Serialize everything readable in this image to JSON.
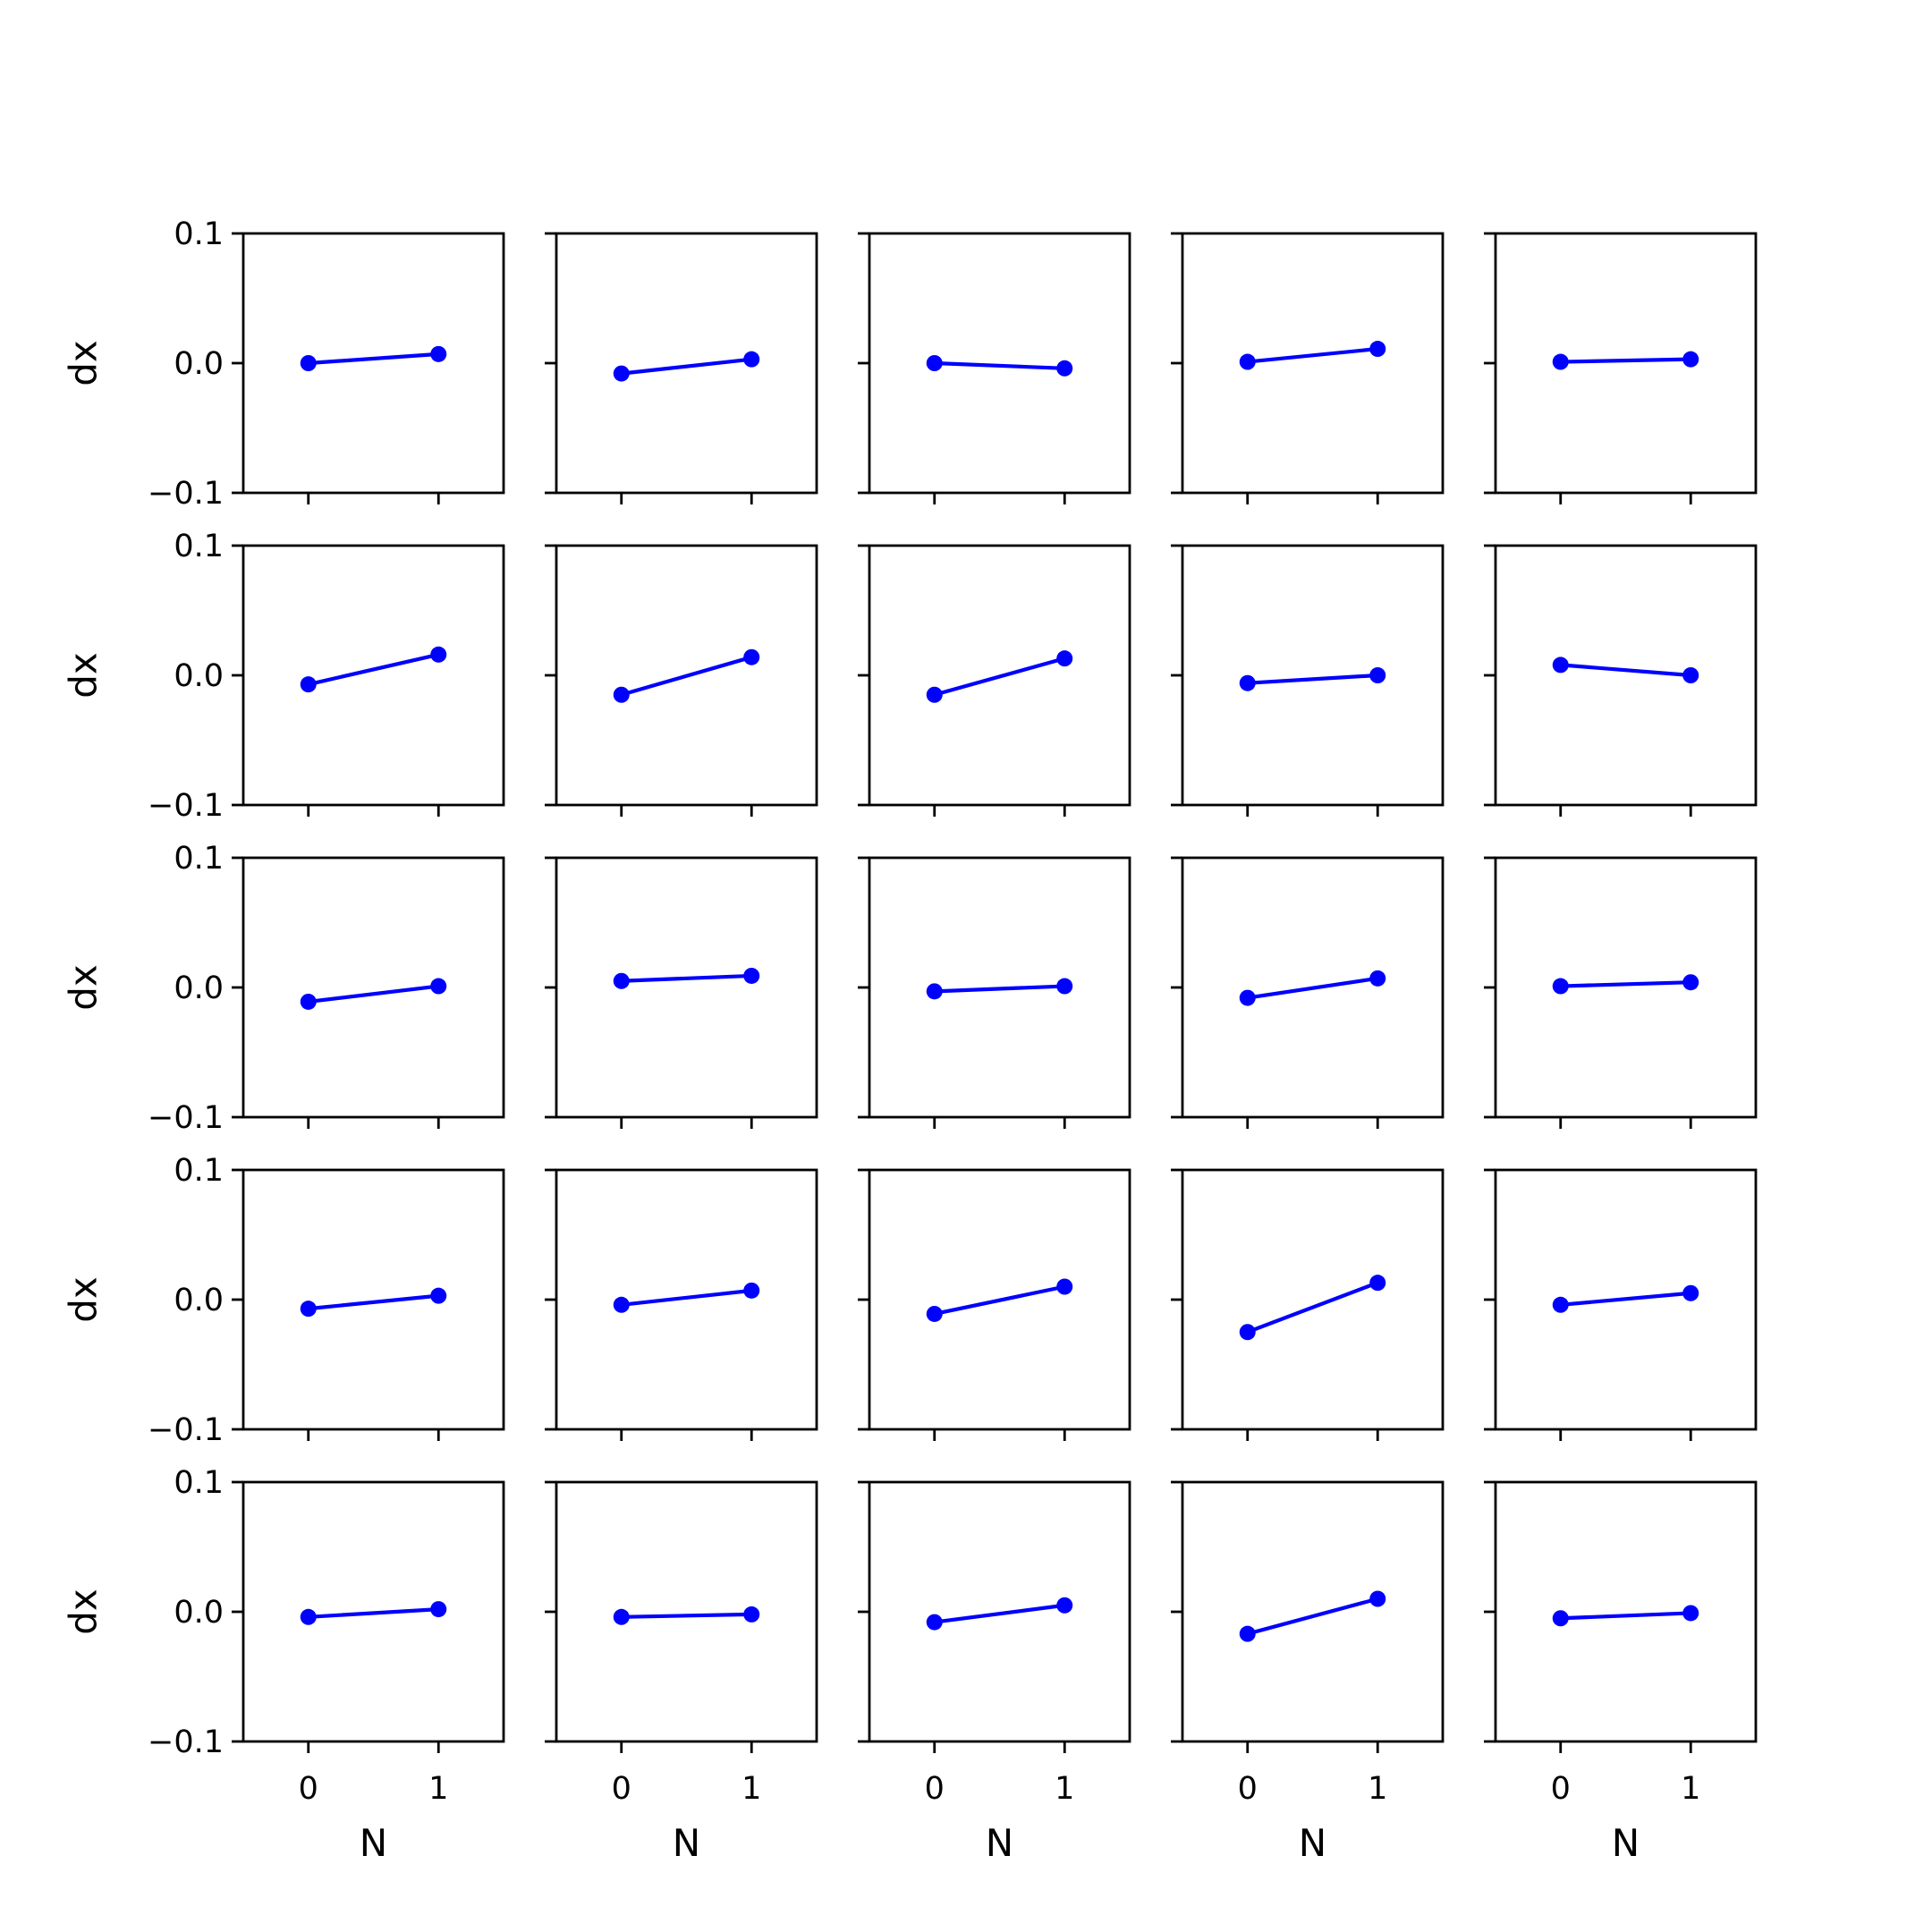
{
  "chart_data": {
    "type": "line",
    "layout": "5x5 grid of small multiples",
    "grid": false,
    "line_color": "#0000ff",
    "xlabel": "N",
    "ylabel": "dx",
    "x": [
      0,
      1
    ],
    "xlim": [
      -0.5,
      1.5
    ],
    "ylim": [
      -0.1,
      0.1
    ],
    "xticks": [
      "0",
      "1"
    ],
    "yticks": [
      "0.1",
      "0.0",
      "−0.1"
    ],
    "panels": [
      {
        "row": 0,
        "col": 0,
        "y": [
          0.0,
          0.007
        ]
      },
      {
        "row": 0,
        "col": 1,
        "y": [
          -0.008,
          0.003
        ]
      },
      {
        "row": 0,
        "col": 2,
        "y": [
          0.0,
          -0.004
        ]
      },
      {
        "row": 0,
        "col": 3,
        "y": [
          0.001,
          0.011
        ]
      },
      {
        "row": 0,
        "col": 4,
        "y": [
          0.001,
          0.003
        ]
      },
      {
        "row": 1,
        "col": 0,
        "y": [
          -0.007,
          0.016
        ]
      },
      {
        "row": 1,
        "col": 1,
        "y": [
          -0.015,
          0.014
        ]
      },
      {
        "row": 1,
        "col": 2,
        "y": [
          -0.015,
          0.013
        ]
      },
      {
        "row": 1,
        "col": 3,
        "y": [
          -0.006,
          0.0
        ]
      },
      {
        "row": 1,
        "col": 4,
        "y": [
          0.008,
          0.0
        ]
      },
      {
        "row": 2,
        "col": 0,
        "y": [
          -0.011,
          0.001
        ]
      },
      {
        "row": 2,
        "col": 1,
        "y": [
          0.005,
          0.009
        ]
      },
      {
        "row": 2,
        "col": 2,
        "y": [
          -0.003,
          0.001
        ]
      },
      {
        "row": 2,
        "col": 3,
        "y": [
          -0.008,
          0.007
        ]
      },
      {
        "row": 2,
        "col": 4,
        "y": [
          0.001,
          0.004
        ]
      },
      {
        "row": 3,
        "col": 0,
        "y": [
          -0.007,
          0.003
        ]
      },
      {
        "row": 3,
        "col": 1,
        "y": [
          -0.004,
          0.007
        ]
      },
      {
        "row": 3,
        "col": 2,
        "y": [
          -0.011,
          0.01
        ]
      },
      {
        "row": 3,
        "col": 3,
        "y": [
          -0.025,
          0.013
        ]
      },
      {
        "row": 3,
        "col": 4,
        "y": [
          -0.004,
          0.005
        ]
      },
      {
        "row": 4,
        "col": 0,
        "y": [
          -0.004,
          0.002
        ]
      },
      {
        "row": 4,
        "col": 1,
        "y": [
          -0.004,
          -0.002
        ]
      },
      {
        "row": 4,
        "col": 2,
        "y": [
          -0.008,
          0.005
        ]
      },
      {
        "row": 4,
        "col": 3,
        "y": [
          -0.017,
          0.01
        ]
      },
      {
        "row": 4,
        "col": 4,
        "y": [
          -0.005,
          -0.001
        ]
      }
    ]
  }
}
